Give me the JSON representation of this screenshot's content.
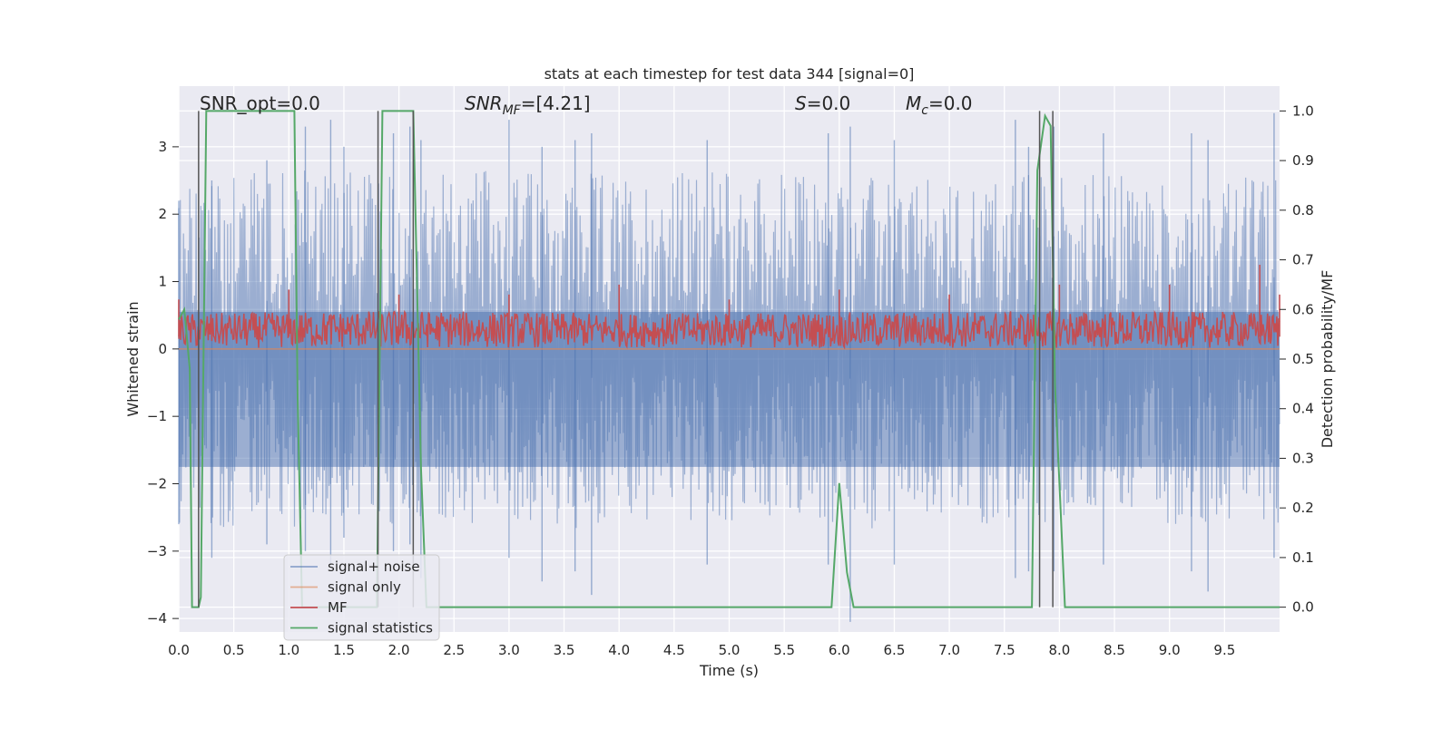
{
  "chart_data": {
    "type": "line",
    "title": "stats at each timestep for test data 344 [signal=0]",
    "xlabel": "Time (s)",
    "ylabel_left": "Whitened strain",
    "ylabel_right": "Detection probability/MF",
    "xlim": [
      0.0,
      10.0
    ],
    "ylim_left": [
      -4.2,
      3.9
    ],
    "ylim_right": [
      -0.05,
      1.05
    ],
    "x_ticks": [
      0.0,
      0.5,
      1.0,
      1.5,
      2.0,
      2.5,
      3.0,
      3.5,
      4.0,
      4.5,
      5.0,
      5.5,
      6.0,
      6.5,
      7.0,
      7.5,
      8.0,
      8.5,
      9.0,
      9.5
    ],
    "x_tick_labels": [
      "0.0",
      "0.5",
      "1.0",
      "1.5",
      "2.0",
      "2.5",
      "3.0",
      "3.5",
      "4.0",
      "4.5",
      "5.0",
      "5.5",
      "6.0",
      "6.5",
      "7.0",
      "7.5",
      "8.0",
      "8.5",
      "9.0",
      "9.5"
    ],
    "y_ticks_left": [
      3,
      2,
      1,
      0,
      -1,
      -2,
      -3,
      -4
    ],
    "y_tick_labels_left": [
      "3",
      "2",
      "1",
      "0",
      "−1",
      "−2",
      "−3",
      "−4"
    ],
    "y_ticks_right": [
      1.0,
      0.9,
      0.8,
      0.7,
      0.6,
      0.5,
      0.4,
      0.3,
      0.2,
      0.1,
      0.0
    ],
    "y_tick_labels_right": [
      "1.0",
      "0.9",
      "0.8",
      "0.7",
      "0.6",
      "0.5",
      "0.4",
      "0.3",
      "0.2",
      "0.1",
      "0.0"
    ],
    "grid": true,
    "legend_position": "lower-left",
    "annotations": [
      {
        "label": "SNR_opt=0.0",
        "italic": false
      },
      {
        "label": "SNR_MF=[4.21]",
        "italic": true
      },
      {
        "label": "S=0.0",
        "italic": true
      },
      {
        "label": "M_c=0.0",
        "italic": true
      }
    ],
    "noise_envelope": {
      "t": [
        0.0,
        1.0,
        2.0,
        3.0,
        4.0,
        5.0,
        6.0,
        7.0,
        8.0,
        9.0,
        10.0
      ],
      "upper": [
        2.6,
        2.7,
        2.6,
        2.7,
        2.6,
        2.7,
        2.6,
        2.5,
        2.7,
        2.5,
        2.6
      ],
      "lower": [
        -2.6,
        -2.7,
        -2.6,
        -2.6,
        -2.7,
        -2.6,
        -2.7,
        -2.6,
        -2.6,
        -2.6,
        -2.6
      ]
    },
    "mf_envelope": {
      "t": [
        0.0,
        2.0,
        4.0,
        6.0,
        8.0,
        10.0
      ],
      "upper": [
        0.6,
        0.65,
        0.6,
        0.62,
        0.64,
        0.62
      ],
      "lower": [
        0.02,
        0.02,
        0.03,
        0.02,
        0.02,
        0.02
      ]
    },
    "series": [
      {
        "name": "signal+ noise",
        "color": "#4c72b0",
        "axis": "left",
        "x": [
          0.0,
          0.3,
          0.8,
          1.15,
          1.38,
          1.5,
          1.95,
          2.1,
          2.2,
          3.0,
          3.3,
          3.6,
          3.75,
          4.8,
          5.9,
          6.1,
          6.5,
          7.6,
          7.72,
          7.95,
          8.4,
          9.2,
          9.35,
          9.95
        ],
        "values": [
          2.2,
          2.5,
          2.8,
          3.3,
          3.4,
          3.0,
          3.2,
          3.3,
          3.1,
          3.4,
          3.0,
          3.1,
          3.2,
          3.1,
          3.2,
          3.3,
          3.1,
          3.4,
          3.0,
          3.3,
          3.2,
          3.2,
          3.1,
          3.5
        ],
        "minima": [
          -2.6,
          -3.1,
          -2.9,
          -3.0,
          -3.2,
          -2.8,
          -3.0,
          -2.9,
          -3.4,
          -3.1,
          -3.45,
          -3.3,
          -3.65,
          -3.2,
          -3.2,
          -4.05,
          -3.2,
          -3.4,
          -3.3,
          -3.3,
          -3.2,
          -3.3,
          -3.6,
          -3.1
        ]
      },
      {
        "name": "signal only",
        "color": "#dd8452",
        "axis": "left",
        "x": [
          0.0,
          10.0
        ],
        "values": [
          0.0,
          0.0
        ]
      },
      {
        "name": "MF",
        "color": "#c44e52",
        "axis": "right",
        "x": [
          0.0,
          1.0,
          2.0,
          3.0,
          4.0,
          5.0,
          6.0,
          7.0,
          8.0,
          9.0,
          9.82,
          10.0
        ],
        "values": [
          0.62,
          0.64,
          0.63,
          0.63,
          0.65,
          0.62,
          0.64,
          0.63,
          0.65,
          0.65,
          0.69,
          0.63
        ]
      },
      {
        "name": "signal statistics",
        "color": "#55a868",
        "axis": "right",
        "x": [
          0.0,
          0.05,
          0.1,
          0.12,
          0.18,
          0.2,
          0.25,
          0.3,
          1.05,
          1.08,
          1.12,
          1.8,
          1.85,
          2.13,
          2.2,
          2.25,
          5.93,
          6.0,
          6.07,
          6.13,
          7.75,
          7.8,
          7.87,
          7.92,
          7.96,
          8.05,
          10.0
        ],
        "values": [
          0.58,
          0.6,
          0.48,
          0.0,
          0.0,
          0.02,
          1.0,
          1.0,
          1.0,
          0.42,
          0.0,
          0.0,
          1.0,
          1.0,
          0.28,
          0.0,
          0.0,
          0.25,
          0.07,
          0.0,
          0.0,
          0.88,
          0.99,
          0.97,
          0.45,
          0.0,
          0.0
        ]
      }
    ],
    "vertical_markers": [
      0.18,
      1.81,
      2.13,
      7.82,
      7.94
    ]
  }
}
